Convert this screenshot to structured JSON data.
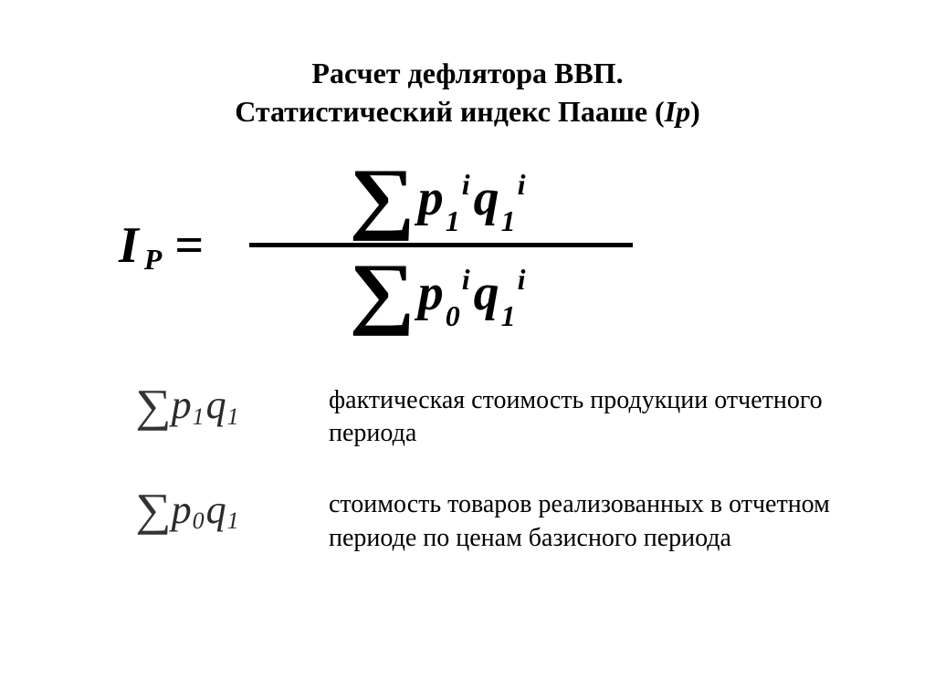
{
  "title": {
    "line1": "Расчет дефлятора ВВП.",
    "line2_prefix": "Статистический индекс Пааше  (",
    "line2_italic": "Ip",
    "line2_suffix": ")"
  },
  "formula": {
    "lhs_I": "I",
    "lhs_sub": "P",
    "eq": "=",
    "sigma": "∑",
    "num_p": "p",
    "num_p_sub": "1",
    "num_p_sup": "i",
    "num_q": "q",
    "num_q_sub": "1",
    "num_q_sup": "i",
    "den_p": "p",
    "den_p_sub": "0",
    "den_p_sup": "i",
    "den_q": "q",
    "den_q_sub": "1",
    "den_q_sup": "i"
  },
  "defs": [
    {
      "sigma": "∑",
      "p": "p",
      "p_sub": "1",
      "q": "q",
      "q_sub": "1",
      "text": "фактическая стоимость продукции отчетного периода"
    },
    {
      "sigma": "∑",
      "p": "p",
      "p_sub": "0",
      "q": "q",
      "q_sub": "1",
      "text": "стоимость товаров реализованных в отчетном периоде по ценам базисного периода"
    }
  ]
}
